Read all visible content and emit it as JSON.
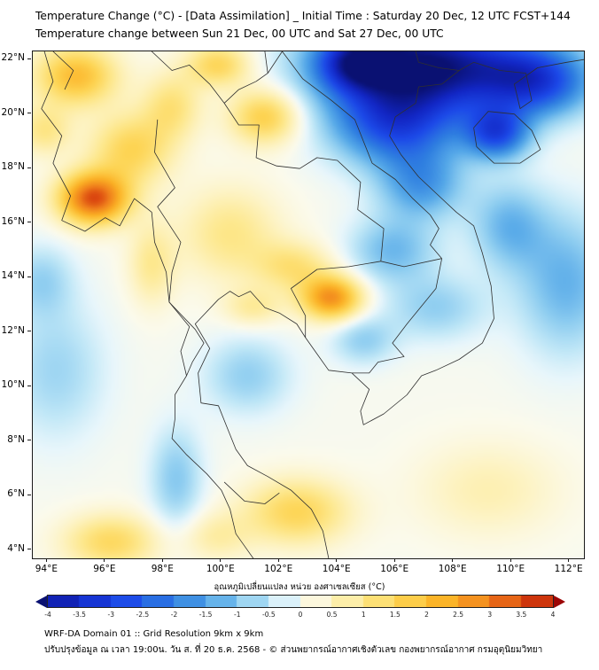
{
  "header": {
    "title_line1": "Temperature Change (°C) - [Data Assimilation] _ Initial Time : Saturday 20 Dec, 12 UTC FCST+144",
    "title_line2": "Temperature change between Sun 21 Dec, 00 UTC and Sat 27 Dec, 00 UTC"
  },
  "map": {
    "x_tick_values": [
      94,
      96,
      98,
      100,
      102,
      104,
      106,
      108,
      110,
      112
    ],
    "x_tick_labels": [
      "94°E",
      "96°E",
      "98°E",
      "100°E",
      "102°E",
      "104°E",
      "106°E",
      "108°E",
      "110°E",
      "112°E"
    ],
    "y_tick_values": [
      4,
      6,
      8,
      10,
      12,
      14,
      16,
      18,
      20,
      22
    ],
    "y_tick_labels": [
      "4°N",
      "6°N",
      "8°N",
      "10°N",
      "12°N",
      "14°N",
      "16°N",
      "18°N",
      "20°N",
      "22°N"
    ]
  },
  "chart_data": {
    "type": "heatmap",
    "title": "Temperature change (°C) between Sun 21 Dec 00 UTC and Sat 27 Dec 00 UTC",
    "units": "°C",
    "x_range": [
      93.5,
      112.5
    ],
    "y_range": [
      3.7,
      22.3
    ],
    "value_range": [
      -4,
      4
    ],
    "base": 0.05,
    "hotspot_format": [
      "lon",
      "lat",
      "amplitude_c",
      "sigma_lon",
      "sigma_lat"
    ],
    "hotspots": [
      [
        107.0,
        21.8,
        -4.4,
        3.4,
        1.7
      ],
      [
        104.6,
        21.9,
        -2.2,
        1.3,
        1.0
      ],
      [
        106.0,
        19.6,
        -2.6,
        2.2,
        1.5
      ],
      [
        109.5,
        19.3,
        -2.6,
        1.1,
        0.95
      ],
      [
        110.9,
        21.2,
        -2.6,
        1.9,
        1.3
      ],
      [
        106.9,
        17.4,
        -1.6,
        1.5,
        1.3
      ],
      [
        105.9,
        15.0,
        -1.2,
        1.5,
        1.2
      ],
      [
        111.9,
        13.8,
        -1.3,
        1.7,
        2.6
      ],
      [
        109.9,
        15.9,
        -1.2,
        1.3,
        1.6
      ],
      [
        107.4,
        12.9,
        -0.9,
        1.7,
        1.2
      ],
      [
        104.9,
        11.7,
        -0.9,
        1.1,
        0.9
      ],
      [
        100.9,
        10.4,
        -0.9,
        1.5,
        1.4
      ],
      [
        98.45,
        6.6,
        -1.0,
        0.9,
        1.9
      ],
      [
        94.3,
        10.6,
        -0.8,
        1.7,
        2.5
      ],
      [
        93.8,
        13.9,
        -0.8,
        1.1,
        1.3
      ],
      [
        95.6,
        16.9,
        3.4,
        1.2,
        0.95
      ],
      [
        96.9,
        18.7,
        1.5,
        1.4,
        1.3
      ],
      [
        95.0,
        21.4,
        2.0,
        1.4,
        1.1
      ],
      [
        93.9,
        19.4,
        1.0,
        0.9,
        0.9
      ],
      [
        98.3,
        20.3,
        1.1,
        1.0,
        1.2
      ],
      [
        99.9,
        21.8,
        1.5,
        1.1,
        0.8
      ],
      [
        101.5,
        19.9,
        1.7,
        1.2,
        1.0
      ],
      [
        100.3,
        15.6,
        1.0,
        1.7,
        1.7
      ],
      [
        97.6,
        14.5,
        0.9,
        0.8,
        1.5
      ],
      [
        103.8,
        13.25,
        2.7,
        1.05,
        0.8
      ],
      [
        102.5,
        14.4,
        1.1,
        1.3,
        0.9
      ],
      [
        101.1,
        12.9,
        0.8,
        1.0,
        0.7
      ],
      [
        102.6,
        5.4,
        1.5,
        1.8,
        1.2
      ],
      [
        96.2,
        4.3,
        1.4,
        1.6,
        1.0
      ],
      [
        109.2,
        6.2,
        0.6,
        2.4,
        1.7
      ],
      [
        99.8,
        4.5,
        0.7,
        1.2,
        0.9
      ]
    ]
  },
  "colorbar": {
    "label": "อุณหภูมิเปลี่ยนแปลง หน่วย องศาเซลเซียส (°C)",
    "min": -4,
    "max": 4,
    "step": 0.5,
    "tick_labels": [
      "-4",
      "-3.5",
      "-3",
      "-2.5",
      "-2",
      "-1.5",
      "-1",
      "-0.5",
      "0",
      "0.5",
      "1",
      "1.5",
      "2",
      "2.5",
      "3",
      "3.5",
      "4"
    ],
    "left_arrow_color": "#0a1172",
    "right_arrow_color": "#9c0505",
    "stops": [
      {
        "v": -4.4,
        "c": "#0a1172"
      },
      {
        "v": -3.6,
        "c": "#1226c4"
      },
      {
        "v": -2.8,
        "c": "#1c49e8"
      },
      {
        "v": -2.0,
        "c": "#2f7fe0"
      },
      {
        "v": -1.4,
        "c": "#55a8e8"
      },
      {
        "v": -0.9,
        "c": "#8ecdf0"
      },
      {
        "v": -0.45,
        "c": "#c2e8f7"
      },
      {
        "v": -0.15,
        "c": "#e8f6fb"
      },
      {
        "v": 0.1,
        "c": "#fbfaec"
      },
      {
        "v": 0.5,
        "c": "#fdf3c3"
      },
      {
        "v": 1.0,
        "c": "#fde88e"
      },
      {
        "v": 1.6,
        "c": "#fdd453"
      },
      {
        "v": 2.3,
        "c": "#fbb125"
      },
      {
        "v": 3.0,
        "c": "#f0801c"
      },
      {
        "v": 3.6,
        "c": "#d8400e"
      },
      {
        "v": 4.4,
        "c": "#9c0505"
      }
    ]
  },
  "geo": {
    "coastlines": [
      [
        [
          93.9,
          22.3
        ],
        [
          94.2,
          21.2
        ],
        [
          93.8,
          20.2
        ],
        [
          94.5,
          19.2
        ],
        [
          94.2,
          18.2
        ],
        [
          94.8,
          17.0
        ],
        [
          94.5,
          16.1
        ],
        [
          95.3,
          15.7
        ],
        [
          96.0,
          16.2
        ],
        [
          96.5,
          15.9
        ],
        [
          97.0,
          16.9
        ],
        [
          97.6,
          16.4
        ],
        [
          97.7,
          15.3
        ],
        [
          98.1,
          14.2
        ],
        [
          98.2,
          13.1
        ],
        [
          98.9,
          12.2
        ],
        [
          98.6,
          11.3
        ],
        [
          98.8,
          10.4
        ],
        [
          98.4,
          9.7
        ],
        [
          98.4,
          8.8
        ],
        [
          98.3,
          8.1
        ],
        [
          98.8,
          7.5
        ],
        [
          99.5,
          6.8
        ],
        [
          100.0,
          6.2
        ],
        [
          100.3,
          5.5
        ],
        [
          100.5,
          4.6
        ],
        [
          100.9,
          4.0
        ],
        [
          101.1,
          3.7
        ]
      ],
      [
        [
          103.7,
          3.7
        ],
        [
          103.5,
          4.7
        ],
        [
          103.1,
          5.5
        ],
        [
          102.4,
          6.2
        ],
        [
          101.6,
          6.7
        ],
        [
          100.9,
          7.1
        ],
        [
          100.5,
          7.7
        ],
        [
          100.2,
          8.5
        ],
        [
          99.9,
          9.3
        ],
        [
          99.3,
          9.4
        ],
        [
          99.2,
          10.5
        ],
        [
          99.6,
          11.4
        ],
        [
          99.1,
          12.3
        ],
        [
          99.9,
          13.2
        ],
        [
          100.3,
          13.5
        ],
        [
          100.6,
          13.3
        ],
        [
          101.0,
          13.5
        ],
        [
          101.5,
          12.9
        ],
        [
          102.0,
          12.7
        ],
        [
          102.6,
          12.3
        ],
        [
          102.9,
          11.8
        ],
        [
          103.3,
          11.2
        ],
        [
          103.7,
          10.6
        ],
        [
          104.5,
          10.5
        ],
        [
          105.1,
          9.9
        ],
        [
          104.8,
          9.1
        ],
        [
          104.9,
          8.6
        ],
        [
          105.6,
          9.0
        ],
        [
          106.4,
          9.7
        ],
        [
          106.9,
          10.4
        ],
        [
          107.4,
          10.6
        ],
        [
          108.2,
          11.0
        ],
        [
          109.0,
          11.6
        ],
        [
          109.4,
          12.5
        ],
        [
          109.3,
          13.7
        ],
        [
          109.0,
          14.9
        ],
        [
          108.7,
          15.9
        ],
        [
          108.1,
          16.4
        ],
        [
          107.5,
          17.0
        ],
        [
          106.8,
          17.7
        ],
        [
          106.2,
          18.5
        ],
        [
          105.8,
          19.2
        ],
        [
          106.0,
          19.9
        ],
        [
          106.7,
          20.4
        ],
        [
          106.8,
          21.0
        ],
        [
          107.6,
          21.1
        ],
        [
          108.2,
          21.6
        ],
        [
          108.7,
          21.9
        ],
        [
          109.6,
          21.6
        ],
        [
          110.5,
          21.5
        ],
        [
          110.7,
          20.5
        ],
        [
          110.3,
          20.2
        ],
        [
          110.1,
          21.1
        ],
        [
          110.9,
          21.7
        ],
        [
          111.9,
          21.9
        ],
        [
          112.5,
          22.0
        ]
      ],
      [
        [
          108.7,
          19.5
        ],
        [
          109.2,
          20.1
        ],
        [
          110.1,
          20.0
        ],
        [
          110.7,
          19.4
        ],
        [
          111.0,
          18.7
        ],
        [
          110.3,
          18.2
        ],
        [
          109.4,
          18.2
        ],
        [
          108.8,
          18.8
        ],
        [
          108.7,
          19.5
        ]
      ]
    ],
    "borders": [
      [
        [
          97.8,
          19.8
        ],
        [
          97.7,
          18.6
        ],
        [
          98.4,
          17.3
        ],
        [
          97.8,
          16.6
        ],
        [
          98.6,
          15.3
        ],
        [
          98.3,
          14.2
        ],
        [
          98.2,
          13.1
        ],
        [
          99.1,
          12.1
        ],
        [
          99.4,
          11.6
        ],
        [
          99.0,
          10.9
        ],
        [
          98.8,
          10.4
        ]
      ],
      [
        [
          100.1,
          20.4
        ],
        [
          100.6,
          19.6
        ],
        [
          101.3,
          19.6
        ],
        [
          101.2,
          18.4
        ],
        [
          101.9,
          18.1
        ],
        [
          102.7,
          18.0
        ],
        [
          103.3,
          18.4
        ],
        [
          104.0,
          18.3
        ],
        [
          104.8,
          17.5
        ],
        [
          104.7,
          16.5
        ],
        [
          105.6,
          15.8
        ],
        [
          105.5,
          14.6
        ]
      ],
      [
        [
          105.5,
          14.6
        ],
        [
          104.4,
          14.4
        ],
        [
          103.3,
          14.3
        ],
        [
          102.4,
          13.6
        ],
        [
          102.9,
          12.6
        ],
        [
          102.9,
          11.8
        ]
      ],
      [
        [
          102.1,
          22.3
        ],
        [
          102.8,
          21.3
        ],
        [
          103.8,
          20.5
        ],
        [
          104.6,
          19.8
        ],
        [
          104.9,
          19.0
        ],
        [
          105.2,
          18.2
        ],
        [
          106.0,
          17.6
        ],
        [
          106.6,
          16.9
        ],
        [
          107.2,
          16.3
        ],
        [
          107.5,
          15.8
        ],
        [
          107.2,
          15.2
        ],
        [
          107.6,
          14.7
        ]
      ],
      [
        [
          105.5,
          14.6
        ],
        [
          106.3,
          14.4
        ],
        [
          107.6,
          14.7
        ]
      ],
      [
        [
          107.6,
          14.7
        ],
        [
          107.4,
          13.6
        ],
        [
          106.4,
          12.3
        ],
        [
          105.9,
          11.6
        ],
        [
          106.3,
          11.1
        ],
        [
          105.4,
          10.9
        ],
        [
          105.1,
          10.5
        ],
        [
          104.5,
          10.5
        ]
      ],
      [
        [
          106.7,
          22.3
        ],
        [
          106.8,
          21.9
        ],
        [
          107.5,
          21.7
        ],
        [
          108.2,
          21.6
        ]
      ],
      [
        [
          97.6,
          22.3
        ],
        [
          98.3,
          21.6
        ],
        [
          98.9,
          21.8
        ],
        [
          99.6,
          21.1
        ],
        [
          100.1,
          20.4
        ]
      ],
      [
        [
          100.1,
          20.4
        ],
        [
          100.6,
          20.9
        ],
        [
          101.2,
          21.2
        ],
        [
          101.6,
          21.5
        ],
        [
          101.5,
          22.3
        ]
      ],
      [
        [
          101.6,
          21.5
        ],
        [
          102.1,
          22.3
        ]
      ],
      [
        [
          100.1,
          6.5
        ],
        [
          100.8,
          5.8
        ],
        [
          101.5,
          5.7
        ],
        [
          102.0,
          6.1
        ]
      ],
      [
        [
          94.2,
          22.3
        ],
        [
          94.9,
          21.6
        ],
        [
          94.6,
          20.9
        ]
      ]
    ]
  },
  "footer": {
    "line1": "WRF-DA Domain 01 :: Grid Resolution 9km x 9km",
    "line2": "ปรับปรุงข้อมูล ณ เวลา 19:00น. วัน ส. ที่ 20 ธ.ค. 2568 - © ส่วนพยากรณ์อากาศเชิงตัวเลข กองพยากรณ์อากาศ กรมอุตุนิยมวิทยา"
  }
}
